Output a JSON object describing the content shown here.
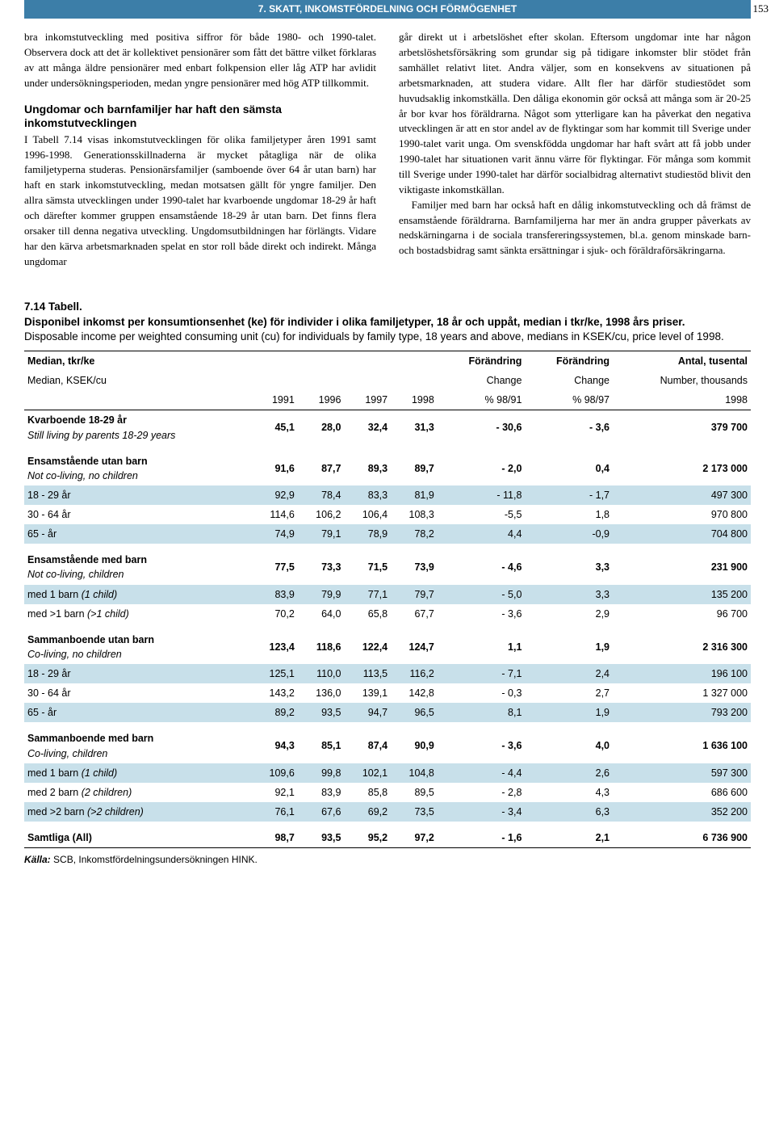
{
  "page_number": "153",
  "header_band": "7. SKATT, INKOMSTFÖRDELNING OCH FÖRMÖGENHET",
  "columns": {
    "left": {
      "p1": "bra inkomstutveckling med positiva siffror för både 1980- och 1990-talet. Observera dock att det är kollektivet pensionärer som fått det bättre vilket förklaras av att många äldre pensionärer med enbart folkpension eller låg ATP har avlidit under undersökningsperioden, medan yngre pensionärer med hög ATP tillkommit.",
      "sub_head": "Ungdomar och barnfamiljer har haft den sämsta inkomstutvecklingen",
      "p2": "I Tabell 7.14 visas inkomstutvecklingen för olika familjetyper åren 1991 samt 1996-1998. Generationsskillnaderna är mycket påtagliga när de olika familjetyperna studeras. Pensionärsfamiljer (samboende över 64 år utan barn) har haft en stark inkomstutveckling, medan motsatsen gällt för yngre familjer. Den allra sämsta utvecklingen under 1990-talet har kvarboende ungdomar 18-29 år haft och därefter kommer gruppen ensamstående 18-29 år utan barn. Det finns flera orsaker till denna negativa utveckling. Ungdomsutbildningen har förlängts. Vidare har den kärva arbetsmarknaden spelat en stor roll både direkt och indirekt. Många ungdomar"
    },
    "right": {
      "p1": "går direkt ut i arbetslöshet efter skolan. Eftersom ungdomar inte har någon arbetslöshetsförsäkring som grundar sig på tidigare inkomster blir stödet från samhället relativt litet. Andra väljer, som en konsekvens av situationen på arbetsmarknaden, att studera vidare. Allt fler har därför studiestödet som huvudsaklig inkomstkälla. Den dåliga ekonomin gör också att många som är 20-25 år bor kvar hos föräldrarna. Något som ytterligare kan ha påverkat den negativa utvecklingen är att en stor andel av de flyktingar som har kommit till Sverige under 1990-talet varit unga. Om svenskfödda ungdomar har haft svårt att få jobb under 1990-talet har situationen varit ännu värre för flyktingar. För många som kommit till Sverige under 1990-talet har därför socialbidrag alternativt studiestöd blivit den viktigaste inkomstkällan.",
      "p2": "    Familjer med barn har också haft en dålig inkomstutveckling och då främst de ensamstående föräldrarna. Barnfamiljerna har mer än andra grupper påverkats av nedskärningarna i de sociala transfereringssystemen, bl.a. genom minskade barn- och bostadsbidrag samt sänkta ersättningar i sjuk- och föräldraförsäkringarna."
    }
  },
  "table": {
    "caption_num": "7.14 Tabell.",
    "caption_sv": "Disponibel inkomst per konsumtionsenhet (ke) för individer i olika familjetyper, 18 år och uppåt, median i tkr/ke, 1998 års priser.",
    "caption_en": "Disposable income per weighted consuming unit (cu) for individuals by family type, 18 years and above, medians in KSEK/cu, price level of 1998.",
    "head": {
      "col0_sv": "Median, tkr/ke",
      "col0_en": "Median, KSEK/cu",
      "ch_sv": "Förändring",
      "ch_en": "Change",
      "cnt_sv": "Antal, tusental",
      "cnt_en": "Number, thousands",
      "years": [
        "1991",
        "1996",
        "1997",
        "1998",
        "% 98/91",
        "% 98/97",
        "1998"
      ]
    },
    "rows": [
      {
        "type": "group",
        "sv": "Kvarboende 18-29 år",
        "en": "Still living by parents 18-29 years",
        "v": [
          "45,1",
          "28,0",
          "32,4",
          "31,3",
          "- 30,6",
          "- 3,6",
          "379 700"
        ]
      },
      {
        "type": "spacer"
      },
      {
        "type": "group",
        "sv": "Ensamstående utan barn",
        "en": "Not co-living, no children",
        "v": [
          "91,6",
          "87,7",
          "89,3",
          "89,7",
          "- 2,0",
          "0,4",
          "2 173 000"
        ]
      },
      {
        "type": "data",
        "shade": true,
        "lbl": "18 - 29 år",
        "v": [
          "92,9",
          "78,4",
          "83,3",
          "81,9",
          "- 11,8",
          "- 1,7",
          "497 300"
        ]
      },
      {
        "type": "data",
        "lbl": "30 - 64 år",
        "v": [
          "114,6",
          "106,2",
          "106,4",
          "108,3",
          "-5,5",
          "1,8",
          "970 800"
        ]
      },
      {
        "type": "data",
        "shade": true,
        "lbl": "65 -  år",
        "v": [
          "74,9",
          "79,1",
          "78,9",
          "78,2",
          "4,4",
          "-0,9",
          "704 800"
        ]
      },
      {
        "type": "spacer"
      },
      {
        "type": "group",
        "sv": "Ensamstående med barn",
        "en": "Not co-living, children",
        "v": [
          "77,5",
          "73,3",
          "71,5",
          "73,9",
          "- 4,6",
          "3,3",
          "231 900"
        ]
      },
      {
        "type": "data",
        "shade": true,
        "lbl": "med 1 barn (1 child)",
        "v": [
          "83,9",
          "79,9",
          "77,1",
          "79,7",
          "- 5,0",
          "3,3",
          "135 200"
        ]
      },
      {
        "type": "data",
        "lbl": "med >1 barn (>1 child)",
        "v": [
          "70,2",
          "64,0",
          "65,8",
          "67,7",
          "- 3,6",
          "2,9",
          "96 700"
        ]
      },
      {
        "type": "spacer"
      },
      {
        "type": "group",
        "sv": "Sammanboende utan barn",
        "en": "Co-living, no children",
        "v": [
          "123,4",
          "118,6",
          "122,4",
          "124,7",
          "1,1",
          "1,9",
          "2 316 300"
        ]
      },
      {
        "type": "data",
        "shade": true,
        "lbl": "18 - 29 år",
        "v": [
          "125,1",
          "110,0",
          "113,5",
          "116,2",
          "- 7,1",
          "2,4",
          "196 100"
        ]
      },
      {
        "type": "data",
        "lbl": "30 - 64 år",
        "v": [
          "143,2",
          "136,0",
          "139,1",
          "142,8",
          "- 0,3",
          "2,7",
          "1 327 000"
        ]
      },
      {
        "type": "data",
        "shade": true,
        "lbl": "65 -  år",
        "v": [
          "89,2",
          "93,5",
          "94,7",
          "96,5",
          "8,1",
          "1,9",
          "793 200"
        ]
      },
      {
        "type": "spacer"
      },
      {
        "type": "group",
        "sv": "Sammanboende med barn",
        "en": "Co-living, children",
        "v": [
          "94,3",
          "85,1",
          "87,4",
          "90,9",
          "- 3,6",
          "4,0",
          "1 636 100"
        ]
      },
      {
        "type": "data",
        "shade": true,
        "lbl": "med 1 barn (1 child)",
        "v": [
          "109,6",
          "99,8",
          "102,1",
          "104,8",
          "- 4,4",
          "2,6",
          "597 300"
        ]
      },
      {
        "type": "data",
        "lbl": "med 2 barn (2 children)",
        "v": [
          "92,1",
          "83,9",
          "85,8",
          "89,5",
          "- 2,8",
          "4,3",
          "686 600"
        ]
      },
      {
        "type": "data",
        "shade": true,
        "lbl": "med >2 barn (>2 children)",
        "v": [
          "76,1",
          "67,6",
          "69,2",
          "73,5",
          "- 3,4",
          "6,3",
          "352 200"
        ]
      },
      {
        "type": "spacer"
      },
      {
        "type": "total",
        "sv": "Samtliga (All)",
        "v": [
          "98,7",
          "93,5",
          "95,2",
          "97,2",
          "- 1,6",
          "2,1",
          "6 736 900"
        ]
      }
    ],
    "source_label": "Källa:",
    "source_text": " SCB, Inkomstfördelningsundersökningen HINK."
  },
  "style": {
    "band_bg": "#3c7ea8",
    "shade_bg": "#c8e0ea"
  }
}
